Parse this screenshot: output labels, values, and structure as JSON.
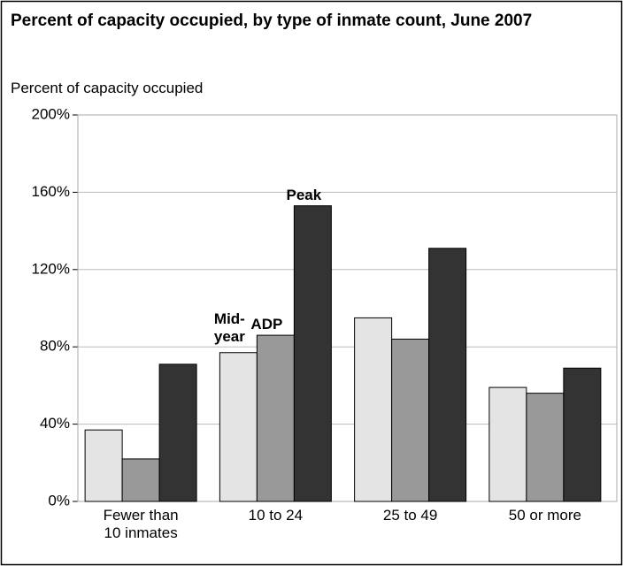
{
  "chart_data": {
    "type": "bar",
    "title": "Percent of capacity occupied, by type of inmate count, June 2007",
    "y_axis_label": "Percent of capacity occupied",
    "categories": [
      "Fewer than 10 inmates",
      "10 to 24",
      "25 to 49",
      "50 or more"
    ],
    "series": [
      {
        "name": "Mid-year",
        "color": "#e4e4e4",
        "values": [
          37,
          77,
          95,
          59
        ]
      },
      {
        "name": "ADP",
        "color": "#999999",
        "values": [
          22,
          86,
          84,
          56
        ]
      },
      {
        "name": "Peak",
        "color": "#333333",
        "values": [
          71,
          153,
          131,
          69
        ]
      }
    ],
    "ylim": [
      0,
      200
    ],
    "yticks": [
      {
        "value": 0,
        "label": "0%"
      },
      {
        "value": 40,
        "label": "40%"
      },
      {
        "value": 80,
        "label": "80%"
      },
      {
        "value": 120,
        "label": "120%"
      },
      {
        "value": 160,
        "label": "160%"
      },
      {
        "value": 200,
        "label": "200%"
      }
    ],
    "grid": true
  }
}
